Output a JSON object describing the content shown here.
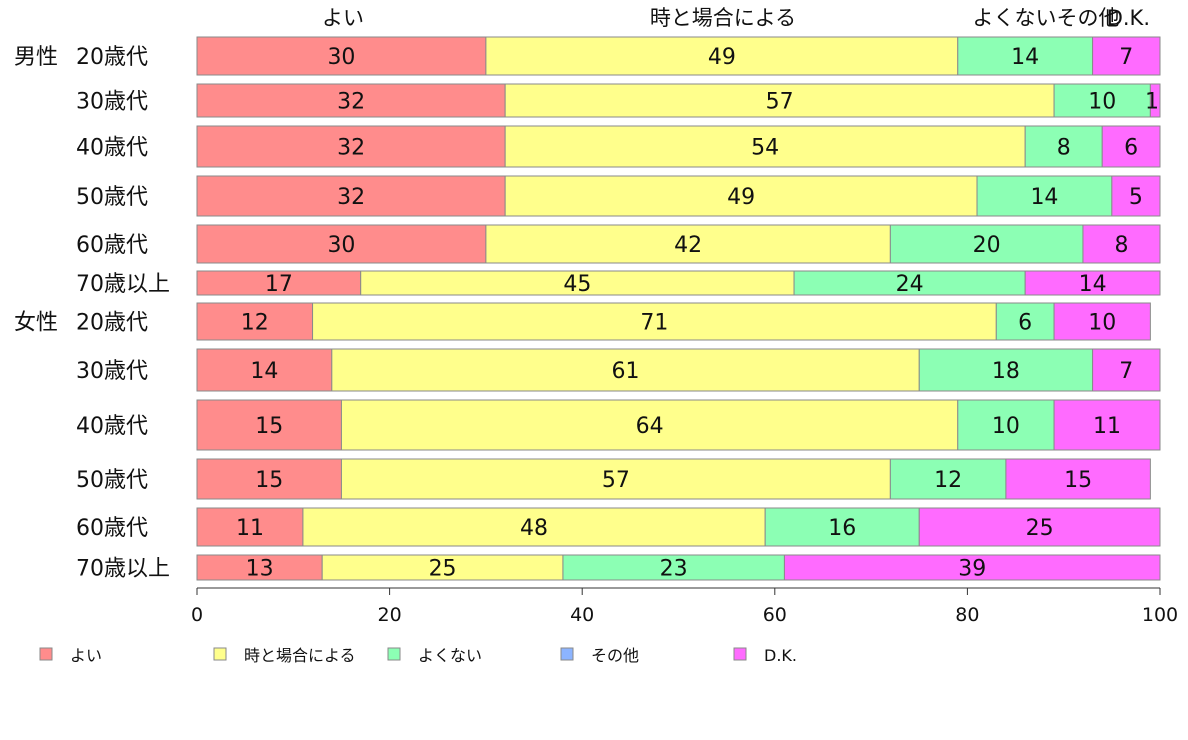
{
  "chart_data": {
    "type": "bar",
    "orientation": "horizontal",
    "stacked": true,
    "grid": false,
    "legend_position": "bottom",
    "xlim": [
      0,
      100
    ],
    "x_ticks": [
      "0",
      "20",
      "40",
      "60",
      "80",
      "100"
    ],
    "header_labels": [
      "よい",
      "時と場合による",
      "よくないその他",
      "D.K."
    ],
    "groups": [
      {
        "name": "男性",
        "start_index": 0
      },
      {
        "name": "女性",
        "start_index": 6
      }
    ],
    "categories": [
      "20歳代",
      "30歳代",
      "40歳代",
      "50歳代",
      "60歳代",
      "70歳以上",
      "20歳代",
      "30歳代",
      "40歳代",
      "50歳代",
      "60歳代",
      "70歳以上"
    ],
    "series": [
      {
        "name": "よい",
        "color": "#ff8c8c",
        "values": [
          30,
          32,
          32,
          32,
          30,
          17,
          12,
          14,
          15,
          15,
          11,
          13
        ]
      },
      {
        "name": "時と場合による",
        "color": "#ffff8c",
        "values": [
          49,
          57,
          54,
          49,
          42,
          45,
          71,
          61,
          64,
          57,
          48,
          25
        ]
      },
      {
        "name": "よくない",
        "color": "#8cffb4",
        "values": [
          14,
          10,
          8,
          14,
          20,
          24,
          6,
          18,
          10,
          12,
          16,
          23
        ]
      },
      {
        "name": "その他",
        "color": "#8cb4ff",
        "values": [
          0,
          0,
          0,
          0,
          0,
          0,
          0,
          0,
          0,
          0,
          0,
          0
        ]
      },
      {
        "name": "D.K.",
        "color": "#ff6bff",
        "values": [
          7,
          1,
          6,
          5,
          8,
          14,
          10,
          7,
          11,
          15,
          25,
          39
        ]
      }
    ]
  }
}
